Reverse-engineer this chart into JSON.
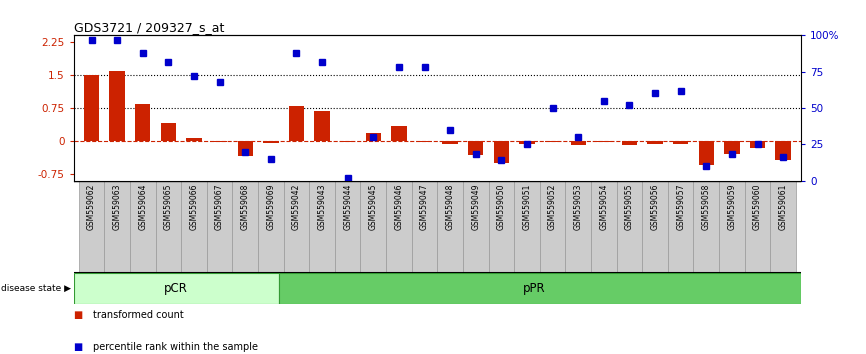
{
  "title": "GDS3721 / 209327_s_at",
  "samples": [
    "GSM559062",
    "GSM559063",
    "GSM559064",
    "GSM559065",
    "GSM559066",
    "GSM559067",
    "GSM559068",
    "GSM559069",
    "GSM559042",
    "GSM559043",
    "GSM559044",
    "GSM559045",
    "GSM559046",
    "GSM559047",
    "GSM559048",
    "GSM559049",
    "GSM559050",
    "GSM559051",
    "GSM559052",
    "GSM559053",
    "GSM559054",
    "GSM559055",
    "GSM559056",
    "GSM559057",
    "GSM559058",
    "GSM559059",
    "GSM559060",
    "GSM559061"
  ],
  "transformed_count": [
    1.5,
    1.58,
    0.85,
    0.4,
    0.06,
    -0.02,
    -0.35,
    -0.04,
    0.8,
    0.68,
    -0.02,
    0.17,
    0.35,
    -0.02,
    -0.07,
    -0.31,
    -0.49,
    -0.08,
    -0.02,
    -0.1,
    -0.02,
    -0.1,
    -0.06,
    -0.08,
    -0.55,
    -0.3,
    -0.15,
    -0.43
  ],
  "percentile_rank": [
    97,
    97,
    88,
    82,
    72,
    68,
    20,
    15,
    88,
    82,
    2,
    30,
    78,
    78,
    35,
    18,
    14,
    25,
    50,
    30,
    55,
    52,
    60,
    62,
    10,
    18,
    25,
    16
  ],
  "pcr_count": 8,
  "ppr_count": 20,
  "pcr_label": "pCR",
  "ppr_label": "pPR",
  "disease_state_label": "disease state",
  "bar_color": "#cc2200",
  "dot_color": "#0000cc",
  "left_ylim": [
    -0.9,
    2.4
  ],
  "right_ylim": [
    0,
    100
  ],
  "yticks_left": [
    -0.75,
    0,
    0.75,
    1.5,
    2.25
  ],
  "yticks_right": [
    0,
    25,
    50,
    75,
    100
  ],
  "hline_75pct": 1.5,
  "hline_50pct": 0.75,
  "pcr_color": "#ccffcc",
  "ppr_color": "#66cc66",
  "xtick_bg": "#cccccc",
  "xtick_edge": "#999999",
  "state_bg": "#bbbbbb",
  "figsize": [
    8.66,
    3.54
  ],
  "dpi": 100
}
